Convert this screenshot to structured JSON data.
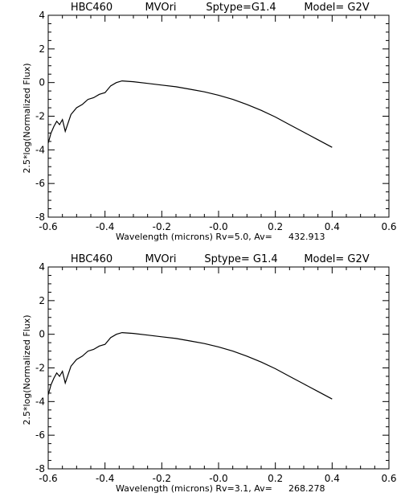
{
  "chart_data": [
    {
      "type": "line",
      "header": {
        "star": "HBC460",
        "name": "MVOri",
        "sptype": "Sptype=G1.4",
        "model": "Model= G2V"
      },
      "xlabel": "Wavelength (microns) Rv=5.0, Av=",
      "av_value": "432.913",
      "ylabel": "2.5*log(Normalized Flux)",
      "xlim": [
        -0.6,
        0.6
      ],
      "ylim": [
        -8,
        4
      ],
      "xticks": [
        "-0.6",
        "-0.4",
        "-0.2",
        "-0.0",
        "0.2",
        "0.4",
        "0.6"
      ],
      "yticks": [
        "-8",
        "-6",
        "-4",
        "-2",
        "0",
        "2",
        "4"
      ],
      "grid": false,
      "series": [
        {
          "x": [
            -0.6,
            -0.59,
            -0.58,
            -0.57,
            -0.56,
            -0.55,
            -0.54,
            -0.52,
            -0.5,
            -0.48,
            -0.46,
            -0.44,
            -0.42,
            -0.4,
            -0.38,
            -0.36,
            -0.34,
            -0.3,
            -0.25,
            -0.2,
            -0.15,
            -0.1,
            -0.05,
            0.0,
            0.05,
            0.1,
            0.15,
            0.2,
            0.25,
            0.3,
            0.35,
            0.4
          ],
          "y": [
            -3.6,
            -3.0,
            -2.6,
            -2.3,
            -2.5,
            -2.2,
            -2.9,
            -1.9,
            -1.5,
            -1.3,
            -1.0,
            -0.9,
            -0.7,
            -0.6,
            -0.2,
            0.0,
            0.1,
            0.05,
            -0.05,
            -0.15,
            -0.25,
            -0.4,
            -0.55,
            -0.75,
            -1.0,
            -1.3,
            -1.65,
            -2.05,
            -2.5,
            -2.95,
            -3.4,
            -3.85
          ]
        }
      ]
    },
    {
      "type": "line",
      "header": {
        "star": "HBC460",
        "name": "MVOri",
        "sptype": "Sptype= G1.4",
        "model": "Model= G2V"
      },
      "xlabel": "Wavelength (microns) Rv=3.1, Av=",
      "av_value": "268.278",
      "ylabel": "2.5*log(Normalized Flux)",
      "xlim": [
        -0.6,
        0.6
      ],
      "ylim": [
        -8,
        4
      ],
      "xticks": [
        "-0.6",
        "-0.4",
        "-0.2",
        "-0.0",
        "0.2",
        "0.4",
        "0.6"
      ],
      "yticks": [
        "-8",
        "-6",
        "-4",
        "-2",
        "0",
        "2",
        "4"
      ],
      "grid": false,
      "series": [
        {
          "x": [
            -0.6,
            -0.59,
            -0.58,
            -0.57,
            -0.56,
            -0.55,
            -0.54,
            -0.52,
            -0.5,
            -0.48,
            -0.46,
            -0.44,
            -0.42,
            -0.4,
            -0.38,
            -0.36,
            -0.34,
            -0.3,
            -0.25,
            -0.2,
            -0.15,
            -0.1,
            -0.05,
            0.0,
            0.05,
            0.1,
            0.15,
            0.2,
            0.25,
            0.3,
            0.35,
            0.4
          ],
          "y": [
            -3.6,
            -3.0,
            -2.6,
            -2.3,
            -2.5,
            -2.2,
            -2.9,
            -1.9,
            -1.5,
            -1.3,
            -1.0,
            -0.9,
            -0.7,
            -0.6,
            -0.2,
            0.0,
            0.1,
            0.05,
            -0.05,
            -0.15,
            -0.25,
            -0.4,
            -0.55,
            -0.75,
            -1.0,
            -1.3,
            -1.65,
            -2.05,
            -2.5,
            -2.95,
            -3.4,
            -3.85
          ]
        }
      ]
    }
  ]
}
